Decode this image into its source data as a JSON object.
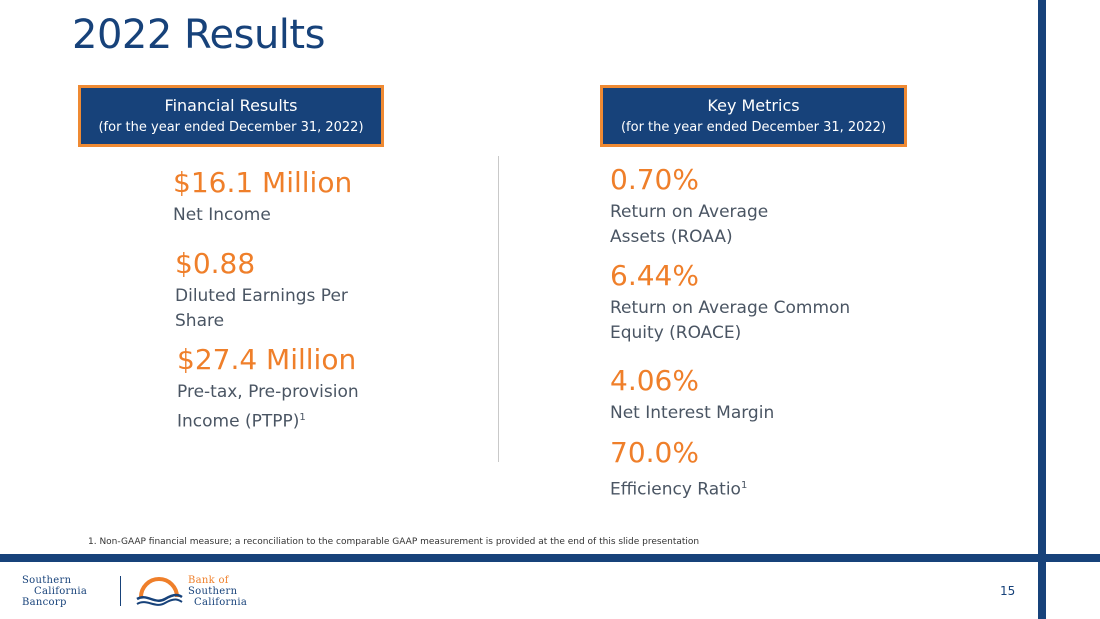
{
  "slide": {
    "title": "2022 Results",
    "page_number": "15"
  },
  "left_panel": {
    "header_title": "Financial Results",
    "header_subtitle": "(for the year ended December 31, 2022)",
    "metrics": [
      {
        "value": "$16.1 Million",
        "label_lines": [
          "Net Income"
        ],
        "footnote": ""
      },
      {
        "value": "$0.88",
        "label_lines": [
          "Diluted Earnings Per",
          "Share"
        ],
        "footnote": ""
      },
      {
        "value": "$27.4 Million",
        "label_lines": [
          "Pre-tax, Pre-provision",
          "Income (PTPP)"
        ],
        "footnote": "1"
      }
    ]
  },
  "right_panel": {
    "header_title": "Key Metrics",
    "header_subtitle": "(for the year ended December 31, 2022)",
    "metrics": [
      {
        "value": "0.70%",
        "label_lines": [
          "Return on Average",
          "Assets (ROAA)"
        ],
        "footnote": ""
      },
      {
        "value": "6.44%",
        "label_lines": [
          "Return on Average Common",
          "Equity (ROACE)"
        ],
        "footnote": ""
      },
      {
        "value": "4.06%",
        "label_lines": [
          "Net Interest Margin"
        ],
        "footnote": ""
      },
      {
        "value": "70.0%",
        "label_lines": [
          "Efficiency Ratio"
        ],
        "footnote": "1"
      }
    ]
  },
  "footnote": "1.  Non-GAAP financial measure; a reconciliation to the comparable GAAP measurement is provided at the end of this slide presentation",
  "logos": {
    "left": [
      "Southern",
      "California",
      "Bancorp"
    ],
    "right": [
      "Bank of",
      "Southern",
      "California"
    ]
  },
  "colors": {
    "navy": "#17427a",
    "orange": "#ef7f2a",
    "label_gray": "#4a5563"
  }
}
